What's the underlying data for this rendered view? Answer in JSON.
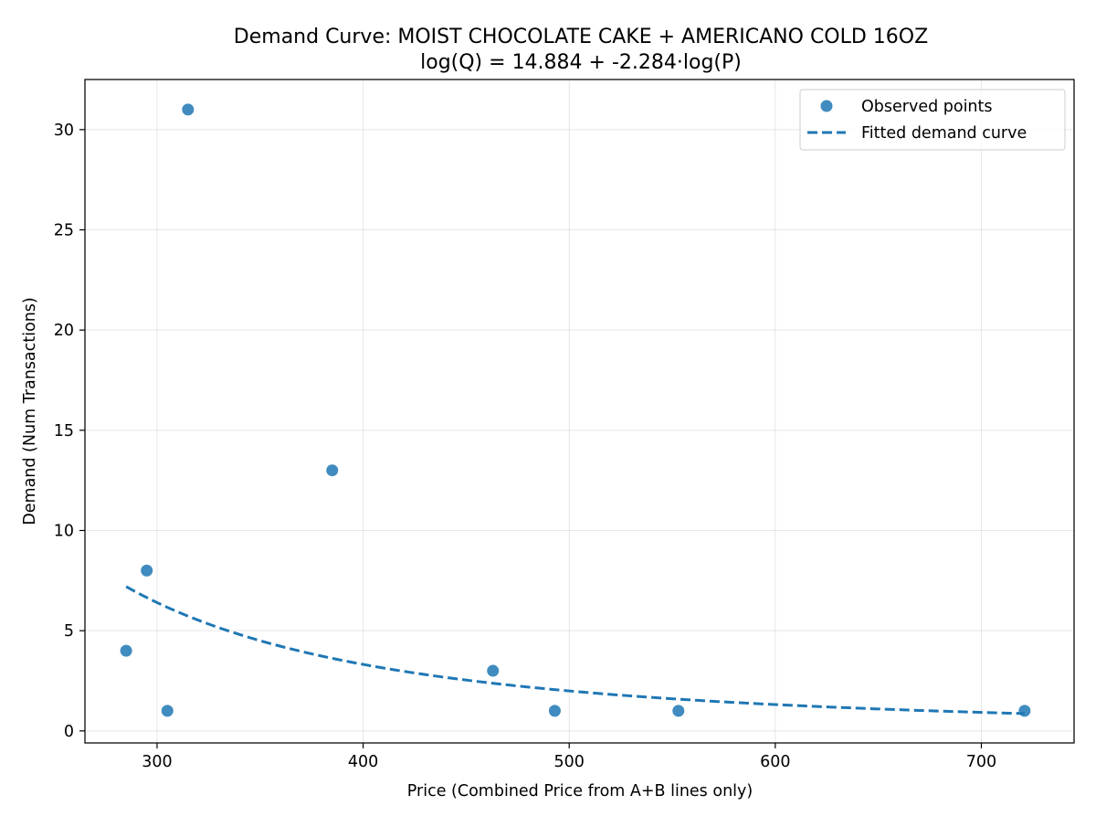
{
  "chart_data": {
    "type": "scatter",
    "title": "Demand Curve: MOIST CHOCOLATE CAKE + AMERICANO COLD 16OZ",
    "subtitle": "log(Q) = 14.884 + -2.284·log(P)",
    "xlabel": "Price (Combined Price from A+B lines only)",
    "ylabel": "Demand (Num Transactions)",
    "xlim": [
      265,
      745
    ],
    "ylim": [
      -0.6,
      32.5
    ],
    "xticks": [
      300,
      400,
      500,
      600,
      700
    ],
    "yticks": [
      0,
      5,
      10,
      15,
      20,
      25,
      30
    ],
    "grid": true,
    "legend_position": "top-right",
    "series": [
      {
        "name": "Observed points",
        "kind": "scatter",
        "color": "#1f77b4",
        "points": [
          {
            "x": 285,
            "y": 4
          },
          {
            "x": 295,
            "y": 8
          },
          {
            "x": 305,
            "y": 1
          },
          {
            "x": 315,
            "y": 31
          },
          {
            "x": 385,
            "y": 13
          },
          {
            "x": 463,
            "y": 3
          },
          {
            "x": 493,
            "y": 1
          },
          {
            "x": 553,
            "y": 1
          },
          {
            "x": 721,
            "y": 1
          }
        ]
      },
      {
        "name": "Fitted demand curve",
        "kind": "line",
        "style": "dashed",
        "color": "#1f77b4",
        "model": {
          "intercept": 14.884,
          "slope": -2.284
        },
        "x_range": [
          285,
          721
        ]
      }
    ]
  }
}
